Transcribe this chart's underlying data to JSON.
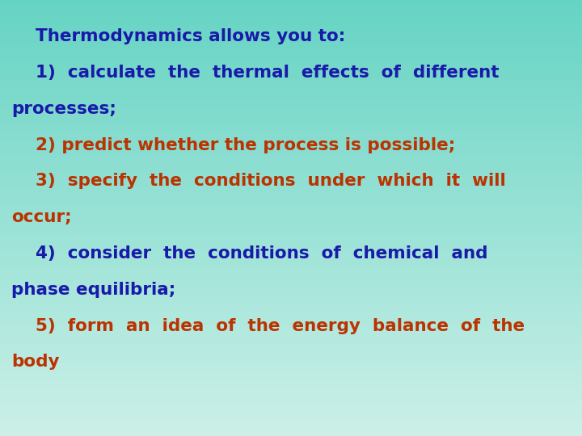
{
  "background_top": "#66d4c4",
  "background_bottom": "#ccf0e8",
  "title_text": "    Thermodynamics allows you to:",
  "title_color": "#1a1aaa",
  "lines": [
    {
      "text": "    1)  calculate  the  thermal  effects  of  different",
      "color": "#1a1aaa"
    },
    {
      "text": "processes;",
      "color": "#1a1aaa"
    },
    {
      "text": "    2) predict whether the process is possible;",
      "color": "#bb3300"
    },
    {
      "text": "    3)  specify  the  conditions  under  which  it  will",
      "color": "#bb3300"
    },
    {
      "text": "occur;",
      "color": "#bb3300"
    },
    {
      "text": "    4)  consider  the  conditions  of  chemical  and",
      "color": "#1a1aaa"
    },
    {
      "text": "phase equilibria;",
      "color": "#1a1aaa"
    },
    {
      "text": "    5)  form  an  idea  of  the  energy  balance  of  the",
      "color": "#bb3300"
    },
    {
      "text": "body",
      "color": "#bb3300"
    }
  ],
  "font_size": 15.5,
  "title_font_size": 15.5,
  "figsize": [
    7.2,
    5.4
  ],
  "dpi": 100
}
